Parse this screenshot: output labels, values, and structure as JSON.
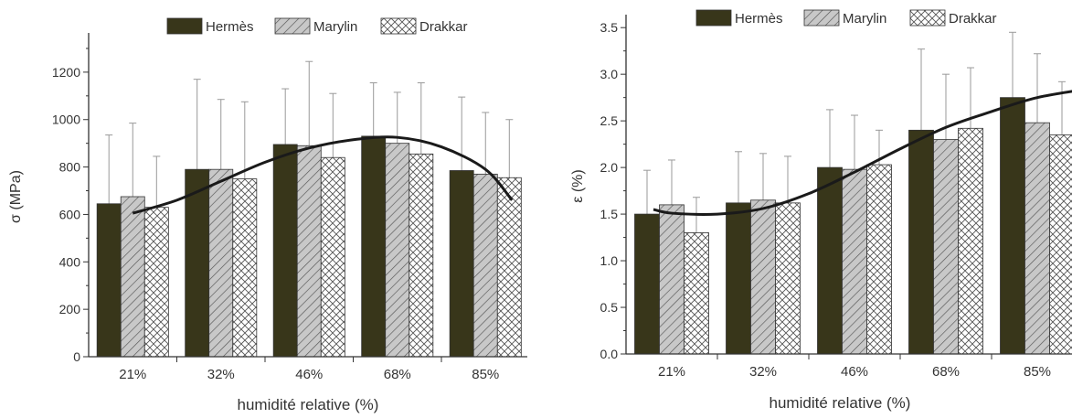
{
  "chart_data": [
    {
      "type": "bar",
      "xlabel": "humidité relative (%)",
      "ylabel": "σ (MPa)",
      "ylim": [
        0,
        1350
      ],
      "yticks": [
        0,
        200,
        400,
        600,
        800,
        1000,
        1200
      ],
      "categories": [
        "21%",
        "32%",
        "46%",
        "68%",
        "85%"
      ],
      "legend_position": "top",
      "series": [
        {
          "name": "Hermès",
          "values": [
            645,
            790,
            895,
            930,
            785
          ],
          "errors": [
            290,
            380,
            235,
            225,
            310
          ]
        },
        {
          "name": "Marylin",
          "values": [
            675,
            790,
            890,
            900,
            770
          ],
          "errors": [
            310,
            295,
            355,
            215,
            260
          ]
        },
        {
          "name": "Drakkar",
          "values": [
            630,
            750,
            840,
            855,
            755
          ],
          "errors": [
            215,
            325,
            270,
            300,
            245
          ]
        }
      ],
      "trend_line": {
        "type": "curve",
        "x": [
          0,
          0.5,
          1,
          1.5,
          2,
          2.5,
          3,
          3.5,
          4,
          4.3
        ],
        "y": [
          605,
          660,
          740,
          820,
          880,
          915,
          925,
          885,
          790,
          660
        ]
      }
    },
    {
      "type": "bar",
      "xlabel": "humidité relative (%)",
      "ylabel": "ε (%)",
      "ylim": [
        0,
        3.6
      ],
      "yticks": [
        "0.0",
        "0.5",
        "1.0",
        "1.5",
        "2.0",
        "2.5",
        "3.0",
        "3.5"
      ],
      "categories": [
        "21%",
        "32%",
        "46%",
        "68%",
        "85%"
      ],
      "legend_position": "top",
      "series": [
        {
          "name": "Hermès",
          "values": [
            1.5,
            1.62,
            2.0,
            2.4,
            2.75
          ],
          "errors": [
            0.47,
            0.55,
            0.62,
            0.87,
            0.7
          ]
        },
        {
          "name": "Marylin",
          "values": [
            1.6,
            1.65,
            1.98,
            2.3,
            2.48
          ],
          "errors": [
            0.48,
            0.5,
            0.58,
            0.7,
            0.74
          ]
        },
        {
          "name": "Drakkar",
          "values": [
            1.3,
            1.62,
            2.03,
            2.42,
            2.35
          ],
          "errors": [
            0.38,
            0.5,
            0.37,
            0.65,
            0.57
          ]
        }
      ],
      "trend_line": {
        "type": "curve",
        "x": [
          -0.2,
          0,
          0.5,
          1,
          1.5,
          2,
          2.5,
          3,
          3.5,
          4,
          4.6
        ],
        "y": [
          1.55,
          1.51,
          1.5,
          1.56,
          1.72,
          1.95,
          2.2,
          2.43,
          2.6,
          2.75,
          2.85
        ]
      }
    }
  ],
  "colors": {
    "hermes": "#38361a",
    "marylin": "#c8c8c8",
    "drakkar": "#ffffff",
    "axis": "#333333",
    "trend": "#1a1a1a",
    "error_bar": "#999999"
  }
}
